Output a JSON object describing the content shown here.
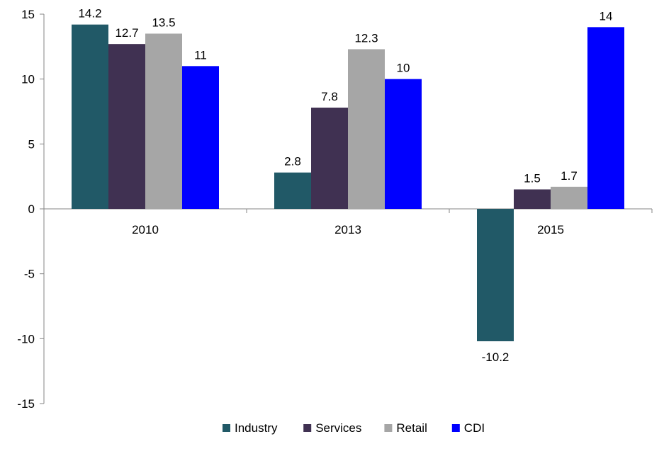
{
  "chart_data": {
    "type": "bar",
    "categories": [
      "2010",
      "2013",
      "2015"
    ],
    "series": [
      {
        "name": "Industry",
        "values": [
          14.2,
          2.8,
          -10.2
        ],
        "color": "#215967"
      },
      {
        "name": "Services",
        "values": [
          12.7,
          7.8,
          1.5
        ],
        "color": "#403152"
      },
      {
        "name": "Retail",
        "values": [
          13.5,
          12.3,
          1.7
        ],
        "color": "#a6a6a6"
      },
      {
        "name": "CDI",
        "values": [
          11,
          10,
          14
        ],
        "color": "#0000ff"
      }
    ],
    "data_labels": [
      [
        "14.2",
        "2.8",
        "-10.2"
      ],
      [
        "12.7",
        "7.8",
        "1.5"
      ],
      [
        "13.5",
        "12.3",
        "1.7"
      ],
      [
        "11",
        "10",
        "14"
      ]
    ],
    "ylim": [
      -15,
      15
    ],
    "yticks": [
      15,
      10,
      5,
      0,
      -5,
      -10,
      -15
    ],
    "ytick_labels": [
      "15",
      "10",
      "5",
      "0",
      "-5",
      "-10",
      "-15"
    ],
    "grid": false,
    "legend_position": "bottom",
    "title": "",
    "xlabel": "",
    "ylabel": ""
  }
}
